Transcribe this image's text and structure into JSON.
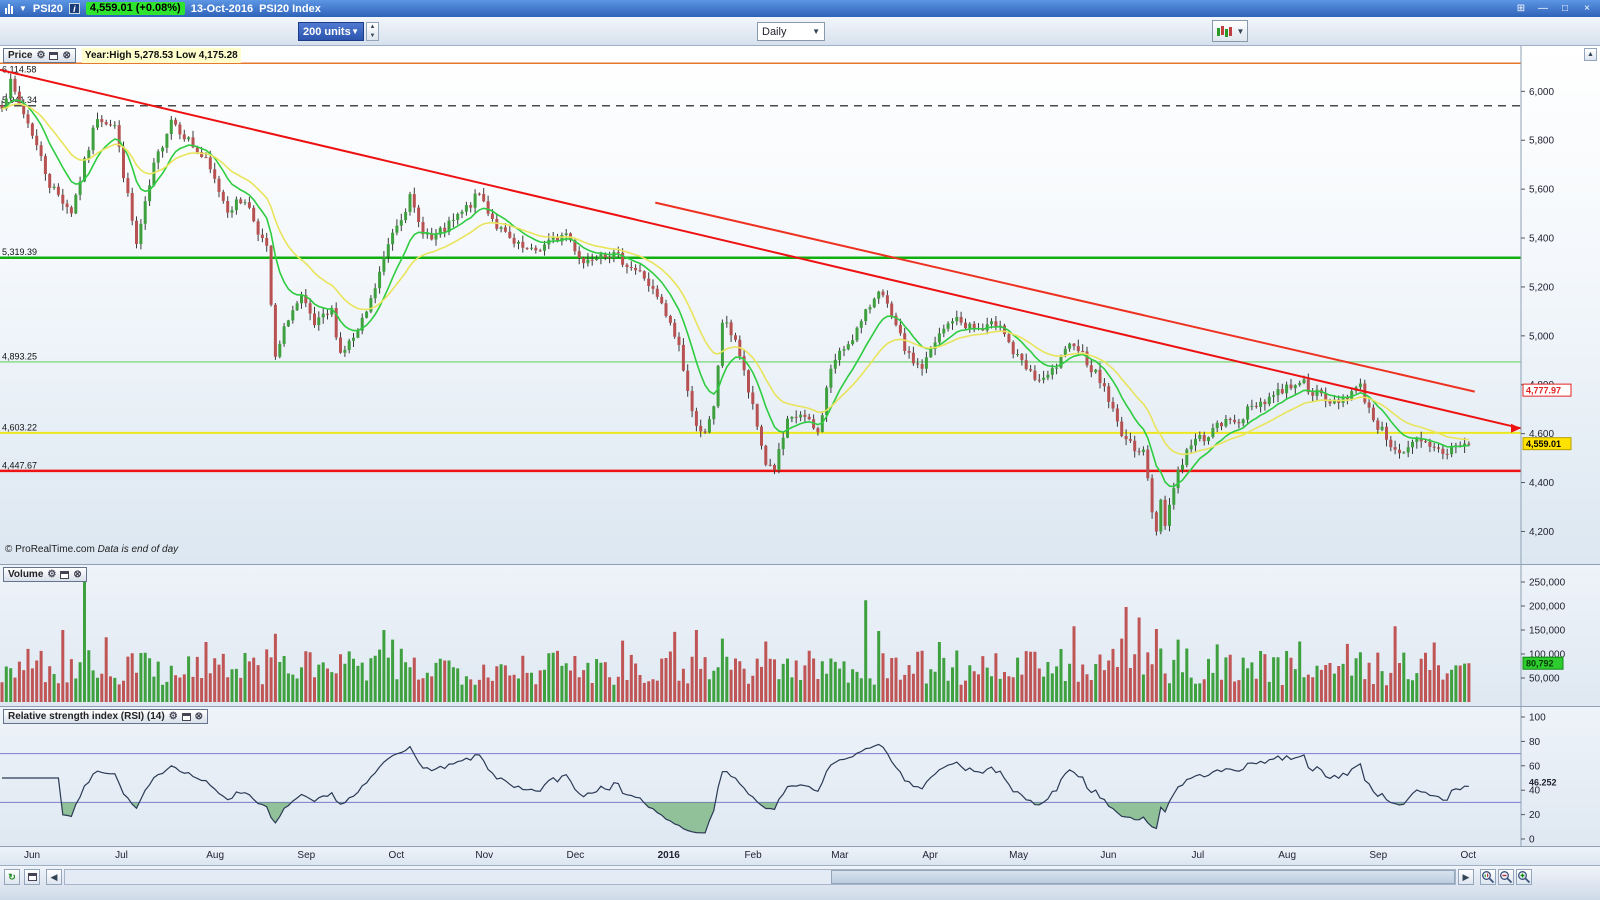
{
  "titlebar": {
    "symbol": "PSI20",
    "info_icon": "i",
    "price_badge": "4,559.01 (+0.08%)",
    "date_label": "13-Oct-2016",
    "index_label": "PSI20 Index"
  },
  "toolbar": {
    "units_value": "200 units",
    "timeframe_value": "Daily"
  },
  "price_panel": {
    "label": "Price",
    "year_stats": "Year:High 5,278.53 Low 4,175.28",
    "copyright": "© ProRealTime.com",
    "data_note": "Data is end of day",
    "last_price_label": "4,559.01",
    "line_marker_label": "4,777.97"
  },
  "volume_panel": {
    "label": "Volume",
    "last_volume_label": "80,792"
  },
  "rsi_panel": {
    "label": "Relative strength index (RSI) (14)",
    "current_label": "46.252"
  },
  "chart_data": {
    "type": "candlestick",
    "title": "PSI20 Index, Daily, 13-Oct-2016",
    "seed": 7,
    "bars": 339,
    "x_months": [
      {
        "label": "Jun",
        "start": 0
      },
      {
        "label": "Jul",
        "start": 21
      },
      {
        "label": "Aug",
        "start": 42
      },
      {
        "label": "Sep",
        "start": 63
      },
      {
        "label": "Oct",
        "start": 84
      },
      {
        "label": "Nov",
        "start": 104
      },
      {
        "label": "Dec",
        "start": 125
      },
      {
        "label": "2016",
        "start": 146,
        "bold": true
      },
      {
        "label": "Feb",
        "start": 166
      },
      {
        "label": "Mar",
        "start": 186
      },
      {
        "label": "Apr",
        "start": 207
      },
      {
        "label": "May",
        "start": 227
      },
      {
        "label": "Jun",
        "start": 248
      },
      {
        "label": "Jul",
        "start": 269
      },
      {
        "label": "Aug",
        "start": 289
      },
      {
        "label": "Sep",
        "start": 310
      },
      {
        "label": "Oct",
        "start": 331
      }
    ],
    "price": {
      "ylim": [
        4120,
        6120
      ],
      "axis_ticks": [
        6000,
        5800,
        5600,
        5400,
        5200,
        5000,
        4800,
        4600,
        4400,
        4200
      ],
      "last_close": 4559.01,
      "red_line_value": 4777.97,
      "year_high": 5278.53,
      "year_low": 4175.28,
      "levels": [
        {
          "value": 6114.58,
          "label": "6,114.58",
          "color": "#e5772e",
          "width": 1.5,
          "dash": ""
        },
        {
          "value": 5941.34,
          "label": "5,941.34",
          "color": "#4a4a4a",
          "width": 1.5,
          "dash": "8 6"
        },
        {
          "value": 5319.39,
          "label": "5,319.39",
          "color": "#0faf0f",
          "width": 2.5,
          "dash": ""
        },
        {
          "value": 4893.25,
          "label": "4,893.25",
          "color": "#8cdc8c",
          "width": 1.5,
          "dash": ""
        },
        {
          "value": 4603.22,
          "label": "4,603.22",
          "color": "#ece81f",
          "width": 2,
          "dash": ""
        },
        {
          "value": 4447.67,
          "label": "4,447.67",
          "color": "#ee1212",
          "width": 2.5,
          "dash": ""
        }
      ],
      "trend_lines": [
        {
          "x1_bar": 0,
          "p1": 6088,
          "x2_bar": 350.5,
          "p2": 4622,
          "color": "#ee1111",
          "width": 2,
          "arrow": true
        },
        {
          "x1_bar": 151,
          "p1": 5545,
          "x2_bar": 339.8,
          "p2": 4772,
          "color": "#ee3222",
          "width": 2,
          "arrow": false
        }
      ],
      "emas": [
        {
          "period": 10,
          "color": "#2ecc40"
        },
        {
          "period": 22,
          "color": "#e9e45c"
        }
      ],
      "anchors": [
        [
          0,
          5950
        ],
        [
          2,
          6030
        ],
        [
          7,
          5830
        ],
        [
          11,
          5620
        ],
        [
          16,
          5510
        ],
        [
          22,
          5900
        ],
        [
          26,
          5860
        ],
        [
          31,
          5370
        ],
        [
          35,
          5690
        ],
        [
          39,
          5890
        ],
        [
          43,
          5800
        ],
        [
          47,
          5710
        ],
        [
          52,
          5520
        ],
        [
          56,
          5560
        ],
        [
          61,
          5350
        ],
        [
          63,
          4900
        ],
        [
          66,
          5080
        ],
        [
          69,
          5150
        ],
        [
          72,
          5040
        ],
        [
          76,
          5100
        ],
        [
          78,
          4930
        ],
        [
          82,
          5010
        ],
        [
          85,
          5140
        ],
        [
          90,
          5430
        ],
        [
          94,
          5560
        ],
        [
          96,
          5460
        ],
        [
          99,
          5390
        ],
        [
          103,
          5450
        ],
        [
          107,
          5520
        ],
        [
          110,
          5580
        ],
        [
          114,
          5450
        ],
        [
          118,
          5370
        ],
        [
          122,
          5340
        ],
        [
          126,
          5380
        ],
        [
          130,
          5420
        ],
        [
          134,
          5300
        ],
        [
          138,
          5350
        ],
        [
          143,
          5310
        ],
        [
          148,
          5240
        ],
        [
          152,
          5120
        ],
        [
          156,
          4960
        ],
        [
          159,
          4680
        ],
        [
          162,
          4590
        ],
        [
          164,
          4700
        ],
        [
          166,
          5060
        ],
        [
          169,
          4990
        ],
        [
          173,
          4700
        ],
        [
          176,
          4480
        ],
        [
          178,
          4460
        ],
        [
          181,
          4640
        ],
        [
          184,
          4680
        ],
        [
          188,
          4600
        ],
        [
          191,
          4870
        ],
        [
          194,
          4950
        ],
        [
          198,
          5050
        ],
        [
          202,
          5200
        ],
        [
          205,
          5070
        ],
        [
          209,
          4910
        ],
        [
          212,
          4870
        ],
        [
          216,
          5000
        ],
        [
          219,
          5070
        ],
        [
          223,
          5040
        ],
        [
          226,
          5020
        ],
        [
          230,
          5060
        ],
        [
          233,
          4930
        ],
        [
          237,
          4840
        ],
        [
          240,
          4810
        ],
        [
          244,
          4900
        ],
        [
          247,
          4980
        ],
        [
          251,
          4870
        ],
        [
          254,
          4790
        ],
        [
          257,
          4640
        ],
        [
          260,
          4550
        ],
        [
          263,
          4540
        ],
        [
          265,
          4270
        ],
        [
          266,
          4210
        ],
        [
          267,
          4330
        ],
        [
          268,
          4240
        ],
        [
          271,
          4450
        ],
        [
          274,
          4560
        ],
        [
          278,
          4600
        ],
        [
          281,
          4640
        ],
        [
          285,
          4660
        ],
        [
          289,
          4720
        ],
        [
          293,
          4760
        ],
        [
          296,
          4790
        ],
        [
          299,
          4820
        ],
        [
          303,
          4760
        ],
        [
          306,
          4720
        ],
        [
          310,
          4760
        ],
        [
          313,
          4790
        ],
        [
          316,
          4660
        ],
        [
          320,
          4560
        ],
        [
          323,
          4510
        ],
        [
          326,
          4570
        ],
        [
          329,
          4540
        ],
        [
          333,
          4520
        ],
        [
          335,
          4560
        ],
        [
          338,
          4559
        ]
      ]
    },
    "volume": {
      "ylim": [
        0,
        260000
      ],
      "axis_ticks": [
        250000,
        200000,
        150000,
        100000,
        50000
      ],
      "base_range": [
        35000,
        112000
      ],
      "last": 80792,
      "spikes": [
        [
          14,
          150000
        ],
        [
          19,
          258000
        ],
        [
          24,
          135000
        ],
        [
          47,
          125000
        ],
        [
          63,
          142000
        ],
        [
          88,
          150000
        ],
        [
          90,
          130000
        ],
        [
          143,
          128000
        ],
        [
          155,
          146000
        ],
        [
          160,
          150000
        ],
        [
          166,
          132000
        ],
        [
          176,
          126000
        ],
        [
          199,
          212000
        ],
        [
          202,
          148000
        ],
        [
          216,
          125000
        ],
        [
          247,
          158000
        ],
        [
          258,
          132000
        ],
        [
          259,
          198000
        ],
        [
          262,
          176000
        ],
        [
          266,
          152000
        ],
        [
          271,
          130000
        ],
        [
          280,
          120000
        ],
        [
          299,
          126000
        ],
        [
          310,
          121000
        ],
        [
          321,
          158000
        ],
        [
          330,
          124000
        ]
      ]
    },
    "rsi": {
      "period": 14,
      "bands": [
        70,
        30
      ],
      "current": 46.252,
      "axis_ticks": [
        100,
        80,
        60,
        40,
        20,
        0
      ],
      "ylim": [
        0,
        100
      ]
    }
  }
}
